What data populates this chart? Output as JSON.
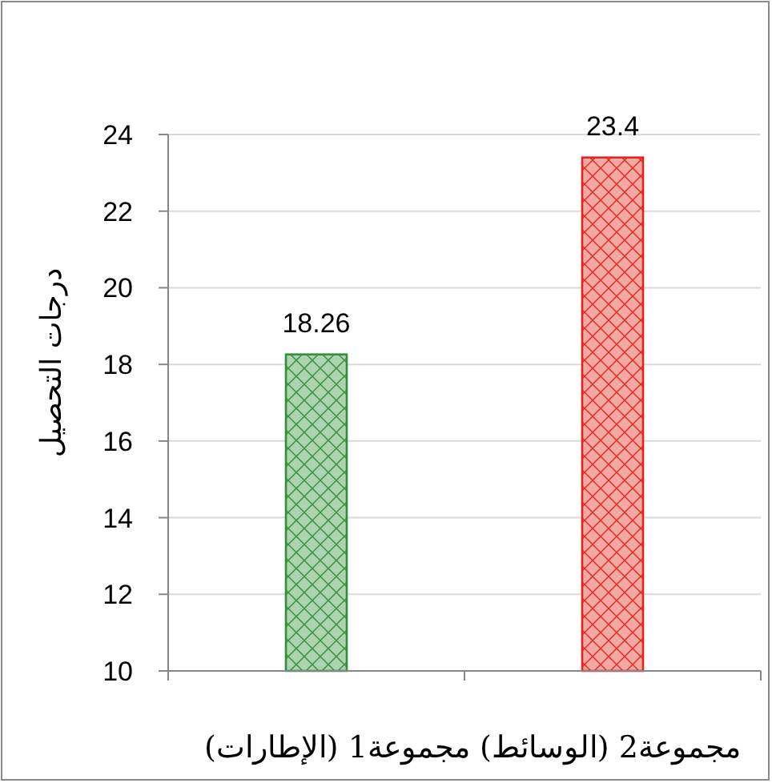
{
  "chart_data": {
    "type": "bar",
    "categories": [
      null,
      null
    ],
    "values": [
      18.26,
      23.4
    ],
    "colors": [
      "#2f8f3a",
      "#e3261b"
    ],
    "ylim": [
      10,
      24
    ],
    "yticks": [
      10,
      12,
      14,
      16,
      18,
      20,
      22,
      24
    ],
    "grid": "y",
    "data_labels": true,
    "ylabel": "درجات التحصيل",
    "xlabel": "مجموعة2 (الوسائط) مجموعة1 (الإطارات)"
  }
}
